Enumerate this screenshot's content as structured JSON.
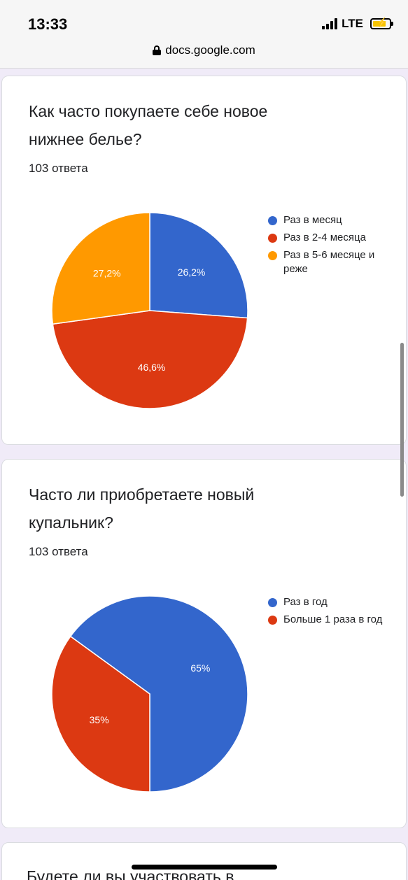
{
  "status_bar": {
    "time": "13:33",
    "network": "LTE",
    "url": "docs.google.com",
    "icons": [
      "signal-bars-icon",
      "battery-charging-icon",
      "lock-icon"
    ]
  },
  "colors": {
    "blue": "#3366cc",
    "red": "#dc3912",
    "orange": "#ff9900",
    "page_background": "#f0ebf8"
  },
  "questions": [
    {
      "title": "Как часто покупаете себе новое нижнее белье?",
      "responses": "103 ответа",
      "legend": [
        "Раз в месяц",
        "Раз в 2-4 месяца",
        "Раз в 5-6 месяце и реже"
      ],
      "slice_labels": [
        "26,2%",
        "46,6%",
        "27,2%"
      ]
    },
    {
      "title": "Часто ли приобретаете новый купальник?",
      "responses": "103 ответа",
      "legend": [
        "Раз в год",
        "Больше 1 раза в год"
      ],
      "slice_labels": [
        "65%",
        "35%"
      ]
    },
    {
      "title": "Будете ли вы участвовать в"
    }
  ],
  "chart_data": [
    {
      "type": "pie",
      "title": "Как часто покупаете себе новое нижнее белье?",
      "categories": [
        "Раз в месяц",
        "Раз в 2-4 месяца",
        "Раз в 5-6 месяце и реже"
      ],
      "values": [
        26.2,
        46.6,
        27.2
      ],
      "colors": [
        "#3366cc",
        "#dc3912",
        "#ff9900"
      ],
      "legend_position": "right"
    },
    {
      "type": "pie",
      "title": "Часто ли приобретаете новый купальник?",
      "categories": [
        "Раз в год",
        "Больше 1 раза в год"
      ],
      "values": [
        65,
        35
      ],
      "colors": [
        "#3366cc",
        "#dc3912"
      ],
      "legend_position": "right"
    }
  ]
}
